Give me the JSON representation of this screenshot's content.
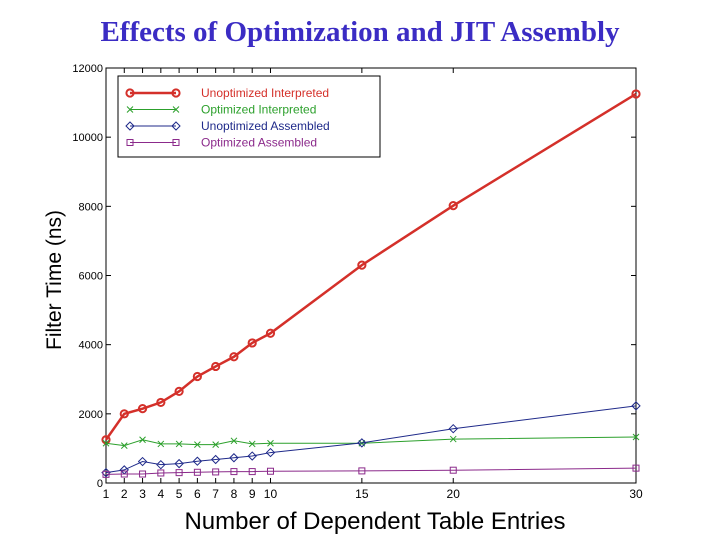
{
  "chart_data": {
    "type": "line",
    "title": "Effects of Optimization and JIT Assembly",
    "xlabel": "Number of Dependent Table Entries",
    "ylabel": "Filter Time (ns)",
    "xlim": [
      1,
      30
    ],
    "ylim": [
      0,
      12000
    ],
    "x_ticks": [
      1,
      2,
      3,
      4,
      5,
      6,
      7,
      8,
      9,
      10,
      15,
      20,
      30
    ],
    "y_ticks": [
      0,
      2000,
      4000,
      6000,
      8000,
      10000,
      12000
    ],
    "grid": false,
    "legend_position": "top-left",
    "x": [
      1,
      2,
      3,
      4,
      5,
      6,
      7,
      8,
      9,
      10,
      15,
      20,
      30
    ],
    "series": [
      {
        "name": "Unoptimized Interpreted",
        "color": "#d4302a",
        "marker": "circle",
        "values": [
          1250,
          2000,
          2150,
          2330,
          2650,
          3080,
          3370,
          3650,
          4050,
          4330,
          6300,
          8020,
          11250
        ]
      },
      {
        "name": "Optimized Interpreted",
        "color": "#2ca02c",
        "marker": "x",
        "values": [
          1150,
          1080,
          1250,
          1130,
          1130,
          1110,
          1110,
          1220,
          1130,
          1150,
          1150,
          1270,
          1330
        ]
      },
      {
        "name": "Unoptimized Assembled",
        "color": "#1f2a8a",
        "marker": "diamond",
        "values": [
          300,
          380,
          620,
          530,
          560,
          630,
          680,
          730,
          780,
          880,
          1160,
          1570,
          2230
        ]
      },
      {
        "name": "Optimized Assembled",
        "color": "#8b2a8b",
        "marker": "square",
        "values": [
          250,
          260,
          260,
          290,
          300,
          310,
          320,
          330,
          330,
          340,
          350,
          370,
          430
        ]
      }
    ]
  }
}
